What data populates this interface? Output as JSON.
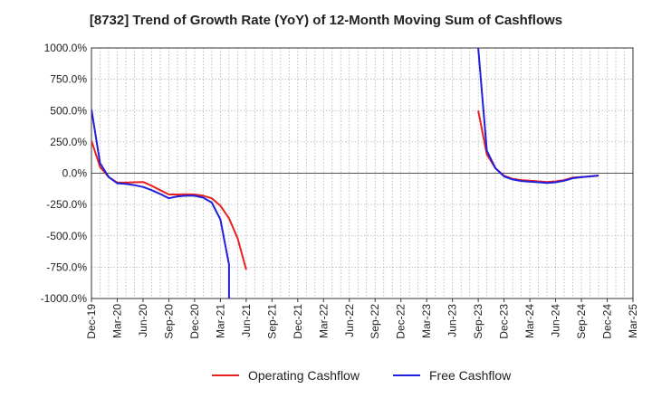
{
  "chart_data": {
    "type": "line",
    "title": "[8732]  Trend of Growth Rate (YoY) of 12-Month Moving Sum of Cashflows",
    "xlabel": "",
    "ylabel": "",
    "ylim": [
      -1000,
      1000
    ],
    "yticks": [
      1000,
      750,
      500,
      250,
      0,
      -250,
      -500,
      -750,
      -1000
    ],
    "ytick_labels": [
      "1000.0%",
      "750.0%",
      "500.0%",
      "250.0%",
      "0.0%",
      "-250.0%",
      "-500.0%",
      "-750.0%",
      "-1000.0%"
    ],
    "xlim": [
      "Dec-19",
      "Mar-25"
    ],
    "xtick_labels": [
      "Dec-19",
      "Mar-20",
      "Jun-20",
      "Sep-20",
      "Dec-20",
      "Mar-21",
      "Jun-21",
      "Sep-21",
      "Dec-21",
      "Mar-22",
      "Jun-22",
      "Sep-22",
      "Dec-22",
      "Mar-23",
      "Jun-23",
      "Sep-23",
      "Dec-23",
      "Mar-24",
      "Jun-24",
      "Sep-24",
      "Dec-24",
      "Mar-25"
    ],
    "grid": true,
    "legend": "bottom",
    "series": [
      {
        "name": "Operating Cashflow",
        "color": "#e8201f",
        "points": [
          [
            "Dec-19",
            260
          ],
          [
            "Jan-20",
            50
          ],
          [
            "Feb-20",
            -30
          ],
          [
            "Mar-20",
            -75
          ],
          [
            "Apr-20",
            -75
          ],
          [
            "May-20",
            -72
          ],
          [
            "Jun-20",
            -70
          ],
          [
            "Jul-20",
            -100
          ],
          [
            "Aug-20",
            -135
          ],
          [
            "Sep-20",
            -170
          ],
          [
            "Oct-20",
            -170
          ],
          [
            "Nov-20",
            -168
          ],
          [
            "Dec-20",
            -170
          ],
          [
            "Jan-21",
            -180
          ],
          [
            "Feb-21",
            -200
          ],
          [
            "Mar-21",
            -260
          ],
          [
            "Apr-21",
            -360
          ],
          [
            "May-21",
            -520
          ],
          [
            "Jun-21",
            -770
          ],
          [
            "Sep-23",
            500
          ],
          [
            "Oct-23",
            150
          ],
          [
            "Nov-23",
            40
          ],
          [
            "Dec-23",
            -20
          ],
          [
            "Jan-24",
            -45
          ],
          [
            "Feb-24",
            -55
          ],
          [
            "Mar-24",
            -60
          ],
          [
            "Apr-24",
            -65
          ],
          [
            "May-24",
            -70
          ],
          [
            "Jun-24",
            -65
          ],
          [
            "Jul-24",
            -55
          ],
          [
            "Aug-24",
            -35
          ],
          [
            "Sep-24",
            -30
          ],
          [
            "Oct-24",
            -25
          ],
          [
            "Nov-24",
            -20
          ]
        ]
      },
      {
        "name": "Free Cashflow",
        "color": "#1f1fe0",
        "points": [
          [
            "Dec-19",
            510
          ],
          [
            "Jan-20",
            80
          ],
          [
            "Feb-20",
            -30
          ],
          [
            "Mar-20",
            -80
          ],
          [
            "Apr-20",
            -85
          ],
          [
            "May-20",
            -95
          ],
          [
            "Jun-20",
            -110
          ],
          [
            "Jul-20",
            -135
          ],
          [
            "Aug-20",
            -165
          ],
          [
            "Sep-20",
            -200
          ],
          [
            "Oct-20",
            -185
          ],
          [
            "Nov-20",
            -180
          ],
          [
            "Dec-20",
            -180
          ],
          [
            "Jan-21",
            -195
          ],
          [
            "Feb-21",
            -235
          ],
          [
            "Mar-21",
            -370
          ],
          [
            "Apr-21",
            -730
          ],
          [
            "Apr-21",
            -1000
          ],
          [
            "Sep-23",
            1000
          ],
          [
            "Oct-23",
            180
          ],
          [
            "Nov-23",
            40
          ],
          [
            "Dec-23",
            -25
          ],
          [
            "Jan-24",
            -50
          ],
          [
            "Feb-24",
            -62
          ],
          [
            "Mar-24",
            -68
          ],
          [
            "Apr-24",
            -72
          ],
          [
            "May-24",
            -78
          ],
          [
            "Jun-24",
            -72
          ],
          [
            "Jul-24",
            -60
          ],
          [
            "Aug-24",
            -40
          ],
          [
            "Sep-24",
            -32
          ],
          [
            "Oct-24",
            -25
          ],
          [
            "Nov-24",
            -18
          ]
        ]
      }
    ]
  }
}
